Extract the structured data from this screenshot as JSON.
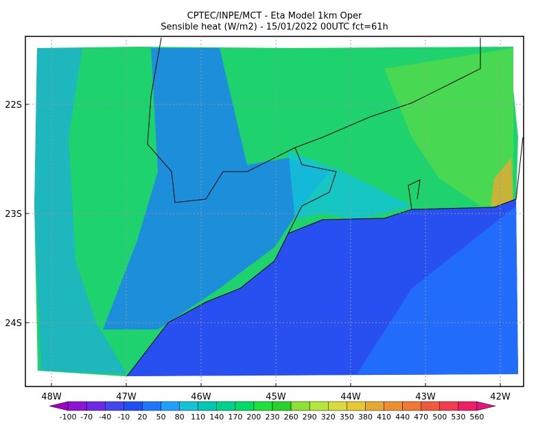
{
  "header": {
    "title": "CPTEC/INPE/MCT -  Eta Model 1km Oper",
    "subtitle": "Sensible heat (W/m2) - 15/01/2022 00UTC fct=61h"
  },
  "map": {
    "lat_labels": [
      "22S",
      "23S",
      "24S"
    ],
    "lon_labels": [
      "48W",
      "47W",
      "46W",
      "45W",
      "44W",
      "43W",
      "42W"
    ]
  },
  "colorbar": {
    "labels": [
      "-100",
      "-70",
      "-40",
      "-10",
      "20",
      "50",
      "80",
      "110",
      "140",
      "170",
      "200",
      "230",
      "260",
      "290",
      "320",
      "350",
      "380",
      "410",
      "440",
      "470",
      "500",
      "530",
      "560"
    ],
    "colors": [
      "#a000c8",
      "#8c14d2",
      "#6e28e6",
      "#4646f0",
      "#1e50f5",
      "#1e78ff",
      "#1ea0ff",
      "#14c3d7",
      "#00c8b4",
      "#00d28c",
      "#00dc64",
      "#1ee13c",
      "#28d228",
      "#8ce132",
      "#b4e63c",
      "#d7dc3c",
      "#e6c832",
      "#e6aa32",
      "#eb9132",
      "#f07832",
      "#f05a3c",
      "#f03c50",
      "#f01e64",
      "#e6147d"
    ]
  }
}
